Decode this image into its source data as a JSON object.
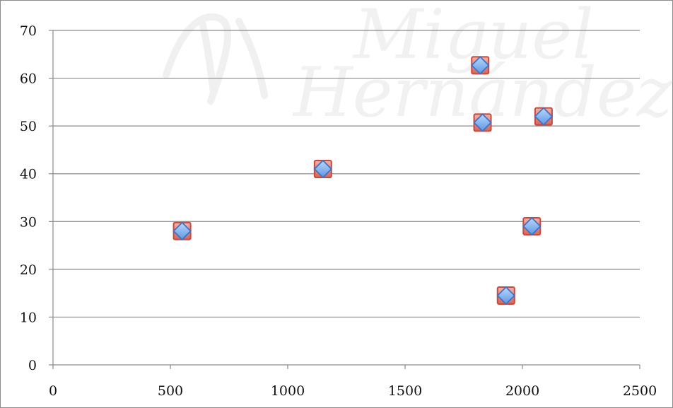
{
  "watermark": {
    "line1": "Miguel",
    "line2": "Hernández"
  },
  "chart_data": {
    "type": "scatter",
    "title": "",
    "xlabel": "",
    "ylabel": "",
    "xlim": [
      0,
      2500
    ],
    "ylim": [
      0,
      70
    ],
    "x_ticks": [
      0,
      500,
      1000,
      1500,
      2000,
      2500
    ],
    "y_ticks": [
      0,
      10,
      20,
      30,
      40,
      50,
      60,
      70
    ],
    "grid": "horizontal",
    "legend": "none",
    "series": [
      {
        "marker": "square",
        "color": "#e07b72",
        "stroke": "#c64a3d",
        "x": [
          550,
          1150,
          1820,
          1830,
          1930,
          2040,
          2090
        ],
        "y": [
          28,
          41,
          62.7,
          50.7,
          14.5,
          29,
          52
        ]
      },
      {
        "marker": "diamond",
        "color": "#7fb1f2",
        "stroke": "#3e73c6",
        "x": [
          550,
          1150,
          1820,
          1830,
          1930,
          2040,
          2090
        ],
        "y": [
          28,
          41,
          62.7,
          50.7,
          14.5,
          29,
          52
        ]
      }
    ]
  }
}
